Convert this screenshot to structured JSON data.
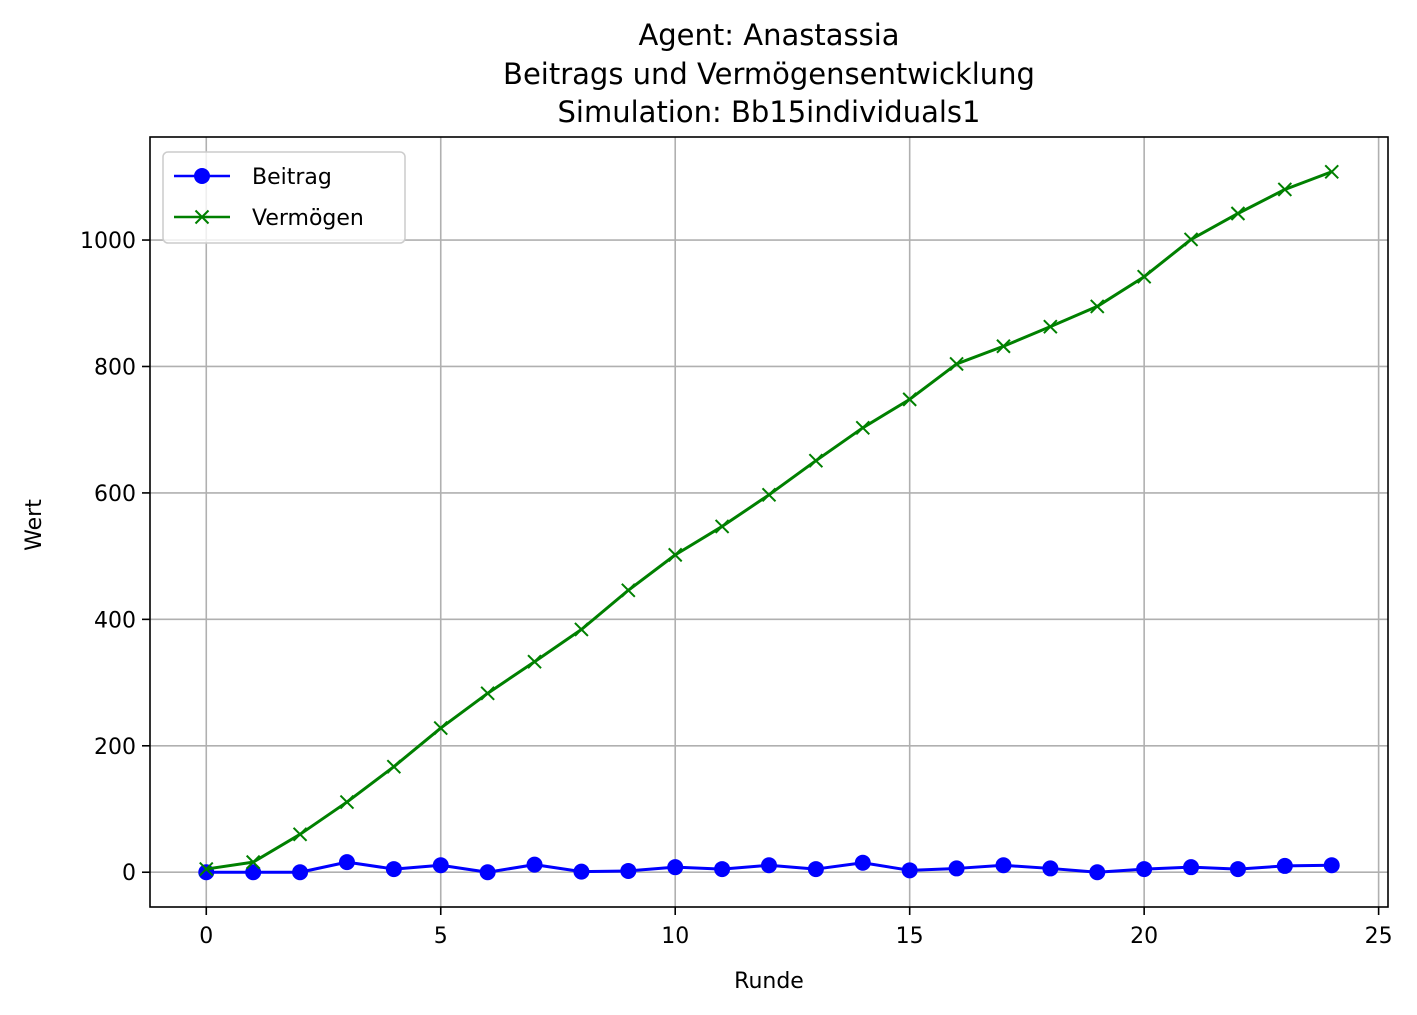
{
  "chart_data": {
    "type": "line",
    "title_lines": [
      "Agent: Anastassia",
      "Beitrags und Vermögensentwicklung",
      "Simulation: Bb15individuals1"
    ],
    "xlabel": "Runde",
    "ylabel": "Wert",
    "xlim": [
      -1.2,
      25.2
    ],
    "ylim": [
      -55,
      1163
    ],
    "xticks": [
      0,
      5,
      10,
      15,
      20,
      25
    ],
    "yticks": [
      0,
      200,
      400,
      600,
      800,
      1000
    ],
    "grid": true,
    "legend_position": "top-left",
    "x": [
      0,
      1,
      2,
      3,
      4,
      5,
      6,
      7,
      8,
      9,
      10,
      11,
      12,
      13,
      14,
      15,
      16,
      17,
      18,
      19,
      20,
      21,
      22,
      23,
      24
    ],
    "series": [
      {
        "name": "Beitrag",
        "color": "#0000ff",
        "marker": "circle",
        "values": [
          0,
          0,
          0,
          16,
          5,
          11,
          0,
          12,
          1,
          2,
          8,
          5,
          11,
          5,
          15,
          3,
          6,
          11,
          6,
          0,
          5,
          8,
          5,
          10,
          11
        ]
      },
      {
        "name": "Vermögen",
        "color": "#008000",
        "marker": "x",
        "values": [
          5,
          16,
          60,
          111,
          167,
          228,
          283,
          333,
          384,
          446,
          502,
          547,
          597,
          651,
          703,
          748,
          804,
          832,
          863,
          895,
          942,
          1001,
          1042,
          1080,
          1108
        ]
      }
    ]
  }
}
